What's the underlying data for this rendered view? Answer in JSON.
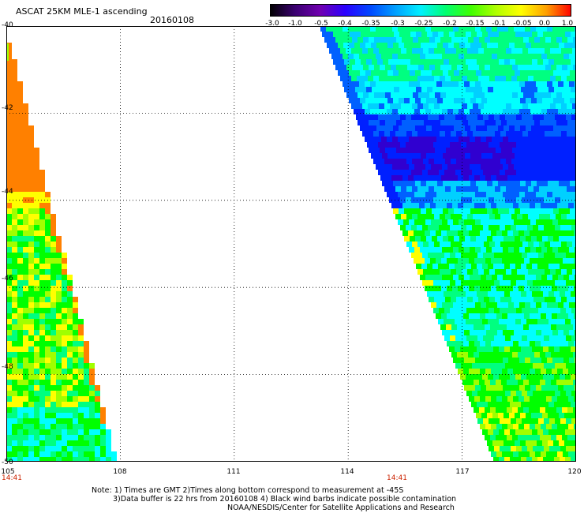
{
  "header": {
    "title": "ASCAT 25KM MLE-1 ascending",
    "date": "20160108"
  },
  "colorbar": {
    "labels": [
      "-3.0",
      "-1.0",
      "-0.5",
      "-0.4",
      "-0.35",
      "-0.3",
      "-0.25",
      "-0.2",
      "-0.15",
      "-0.1",
      "-0.05",
      "0.0",
      "1.0"
    ],
    "colors": [
      "#000000",
      "#3a0070",
      "#7000b0",
      "#2a00ff",
      "#0048ff",
      "#00a0ff",
      "#00f0ff",
      "#00ff70",
      "#40ff00",
      "#b0ff00",
      "#ffff00",
      "#ffa000",
      "#ff0000"
    ]
  },
  "map": {
    "lat_labels": [
      "-40",
      "-42",
      "-44",
      "-46",
      "-48",
      "-50"
    ],
    "lon_labels": [
      "105",
      "108",
      "111",
      "114",
      "117",
      "120"
    ],
    "lon_range": [
      105,
      120
    ],
    "lat_range": [
      -40,
      -50
    ],
    "times": [
      "14:41",
      "14:41"
    ],
    "legend_colors": {
      "orange": "#ff8000",
      "yellow": "#ffff00",
      "lime": "#a0ff00",
      "green": "#00ff00",
      "seagreen": "#00ff80",
      "cyan": "#00ffff",
      "sky": "#00d0ff",
      "blue": "#0060ff",
      "deepblue": "#0020ff",
      "purple": "#3000d0"
    }
  },
  "notes": {
    "line1": "Note: 1) Times are GMT 2)Times along bottom correspond to measurement at -45S",
    "line2": "3)Data buffer is 22 hrs from 20160108 4) Black wind barbs indicate possible contamination",
    "line3": "NOAA/NESDIS/Center for Satellite Applications and Research"
  }
}
